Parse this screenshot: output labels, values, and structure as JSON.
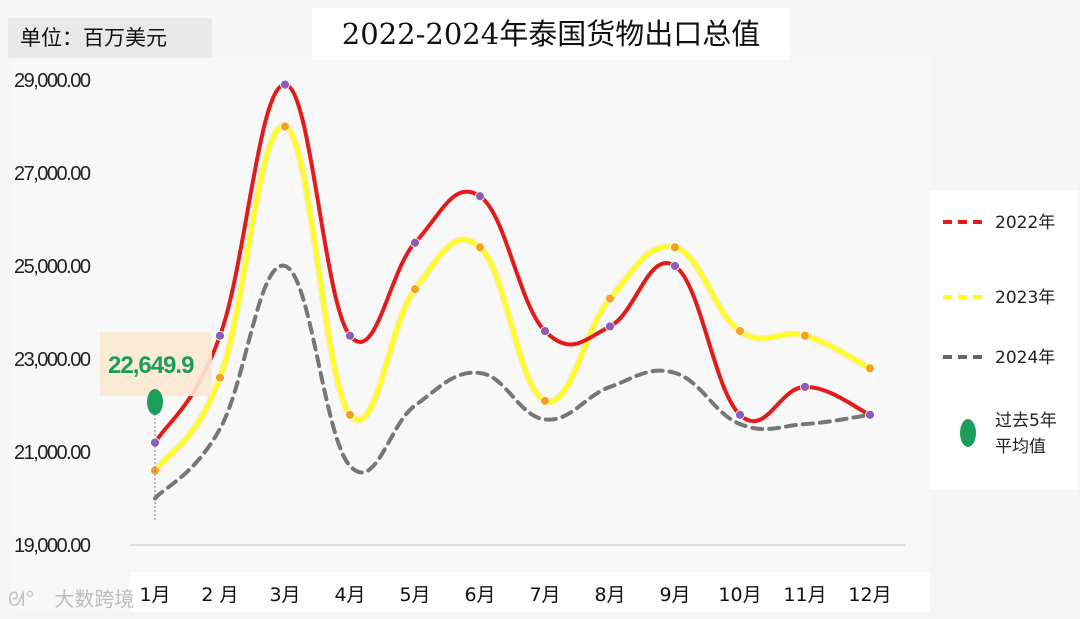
{
  "chart_data": {
    "type": "line",
    "title": "2022-2024年泰国货物出口总值",
    "unit_label": "单位：百万美元",
    "categories": [
      "1月",
      "2 月",
      "3月",
      "4月",
      "5月",
      "6月",
      "7月",
      "8月",
      "9月",
      "10月",
      "11月",
      "12月"
    ],
    "y_ticks": [
      "19,000.00",
      "21,000.00",
      "23,000.00",
      "25,000.00",
      "27,000.00",
      "29,000.00"
    ],
    "ylim": [
      19000,
      29000
    ],
    "grid": false,
    "legend_position": "right",
    "series": [
      {
        "name": "2022年",
        "color": "#e31b1b",
        "line_style": "solid",
        "marker_color": "#8a5fb5",
        "values": [
          21200,
          23500,
          28900,
          23500,
          25500,
          26500,
          23600,
          23700,
          25000,
          21800,
          22400,
          21800
        ]
      },
      {
        "name": "2023年",
        "color": "#ffff1a",
        "line_style": "solid",
        "marker_color": "#f2a31b",
        "values": [
          20600,
          22600,
          28000,
          21800,
          24500,
          25400,
          22100,
          24300,
          25400,
          23600,
          23500,
          22800
        ]
      },
      {
        "name": "2024年",
        "color": "#777777",
        "line_style": "dashed",
        "marker_color": null,
        "values": [
          20000,
          21500,
          25000,
          20700,
          22000,
          22700,
          21700,
          22400,
          22700,
          21600,
          21600,
          21800
        ]
      }
    ],
    "average": {
      "label": "过去5年平均值",
      "value": 22649.9,
      "value_label": "22,649.9",
      "color": "#1a9e5a",
      "x_category": "1月"
    }
  },
  "legend": {
    "items": [
      {
        "label": "2022年",
        "color": "#e31b1b",
        "style": "dashed"
      },
      {
        "label": "2023年",
        "color": "#ffff1a",
        "style": "dashed"
      },
      {
        "label": "2024年",
        "color": "#666666",
        "style": "dashed"
      },
      {
        "label_line1": "过去5年",
        "label_line2": "平均值",
        "color": "#1a9e5a",
        "style": "marker"
      }
    ]
  },
  "watermark": {
    "text": "大数跨境",
    "icon": "weibo-logo-icon"
  }
}
